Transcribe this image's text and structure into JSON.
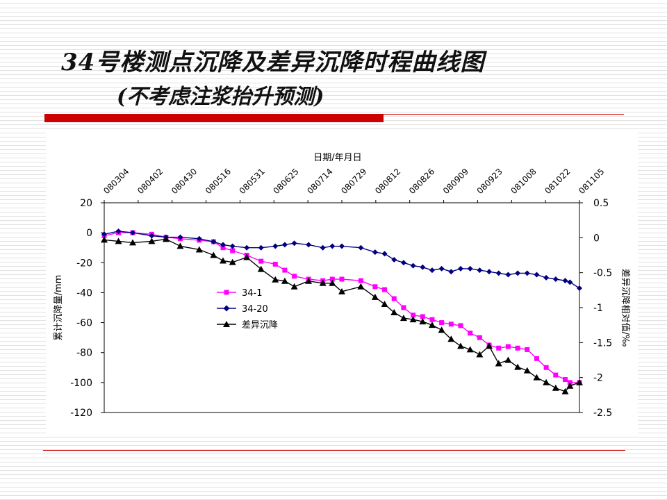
{
  "slide": {
    "title": "34号楼测点沉降及差异沉降时程曲线图",
    "subtitle": "(不考虑注浆抬升预测)"
  },
  "colors": {
    "accent": "#cc0000",
    "series_34_1": "#ff00ff",
    "series_34_20": "#000080",
    "series_diff": "#000000"
  },
  "chart_data": {
    "type": "line",
    "title": "",
    "x_axis": {
      "label": "日期/年月日",
      "position": "top",
      "tick_labels": [
        "080304",
        "080402",
        "080430",
        "080516",
        "080531",
        "080625",
        "080714",
        "080729",
        "080812",
        "080826",
        "080909",
        "080923",
        "081008",
        "081022",
        "081105"
      ]
    },
    "y_left": {
      "label": "累计沉降量/mm",
      "range": [
        -120,
        20
      ],
      "ticks": [
        20,
        0,
        -20,
        -40,
        -60,
        -80,
        -100,
        -120
      ]
    },
    "y_right": {
      "label": "差异沉降相对值/‰",
      "range": [
        -2.5,
        0.5
      ],
      "ticks": [
        "0.5",
        "0",
        "-0.5",
        "-1",
        "-1.5",
        "-2",
        "-2.5"
      ]
    },
    "grid": false,
    "legend_position": "middle-left",
    "x_range": [
      0,
      100
    ],
    "series": [
      {
        "name": "34-1",
        "axis": "left",
        "color": "#ff00ff",
        "marker": "square",
        "x": [
          0,
          3,
          6,
          10,
          13,
          16,
          20,
          23,
          25,
          27,
          30,
          33,
          36,
          38,
          40,
          43,
          46,
          48,
          50,
          54,
          57,
          59,
          61,
          63,
          65,
          67,
          69,
          71,
          73,
          75,
          77,
          79,
          81,
          83,
          85,
          87,
          89,
          91,
          93,
          95,
          97,
          98,
          100
        ],
        "y": [
          -2,
          0,
          0,
          -1,
          -3,
          -4,
          -5,
          -6,
          -10,
          -12,
          -15,
          -19,
          -21,
          -25,
          -29,
          -31,
          -32,
          -31,
          -31,
          -32,
          -36,
          -38,
          -44,
          -50,
          -55,
          -56,
          -58,
          -60,
          -61,
          -62,
          -67,
          -70,
          -75,
          -77,
          -76,
          -77,
          -78,
          -84,
          -90,
          -95,
          -98,
          -100,
          -100
        ]
      },
      {
        "name": "34-20",
        "axis": "left",
        "color": "#000080",
        "marker": "diamond",
        "x": [
          0,
          3,
          6,
          10,
          13,
          16,
          20,
          23,
          25,
          27,
          30,
          33,
          36,
          38,
          40,
          43,
          46,
          48,
          50,
          54,
          57,
          59,
          61,
          63,
          65,
          67,
          69,
          71,
          73,
          75,
          77,
          79,
          81,
          83,
          85,
          87,
          89,
          91,
          93,
          95,
          97,
          98,
          100
        ],
        "y": [
          -1,
          1,
          0,
          -2,
          -3,
          -3,
          -4,
          -6,
          -8,
          -9,
          -10,
          -10,
          -9,
          -8,
          -7,
          -8,
          -10,
          -9,
          -9,
          -10,
          -13,
          -14,
          -18,
          -20,
          -22,
          -23,
          -25,
          -24,
          -26,
          -24,
          -24,
          -25,
          -26,
          -27,
          -28,
          -27,
          -27,
          -28,
          -30,
          -31,
          -32,
          -33,
          -37
        ]
      },
      {
        "name": "差异沉降",
        "axis": "right",
        "color": "#000000",
        "marker": "triangle",
        "x": [
          0,
          3,
          6,
          10,
          13,
          16,
          20,
          23,
          25,
          27,
          30,
          33,
          36,
          38,
          40,
          43,
          46,
          48,
          50,
          54,
          57,
          59,
          61,
          63,
          65,
          67,
          69,
          71,
          73,
          75,
          77,
          79,
          81,
          83,
          85,
          87,
          89,
          91,
          93,
          95,
          97,
          98,
          100
        ],
        "y": [
          -0.03,
          -0.05,
          -0.07,
          -0.05,
          -0.02,
          -0.12,
          -0.17,
          -0.25,
          -0.33,
          -0.35,
          -0.28,
          -0.45,
          -0.6,
          -0.62,
          -0.7,
          -0.62,
          -0.65,
          -0.65,
          -0.77,
          -0.7,
          -0.85,
          -0.95,
          -1.07,
          -1.15,
          -1.17,
          -1.2,
          -1.25,
          -1.32,
          -1.45,
          -1.55,
          -1.6,
          -1.67,
          -1.55,
          -1.8,
          -1.75,
          -1.85,
          -1.9,
          -2.0,
          -2.07,
          -2.15,
          -2.2,
          -2.12,
          -2.07
        ]
      }
    ]
  }
}
